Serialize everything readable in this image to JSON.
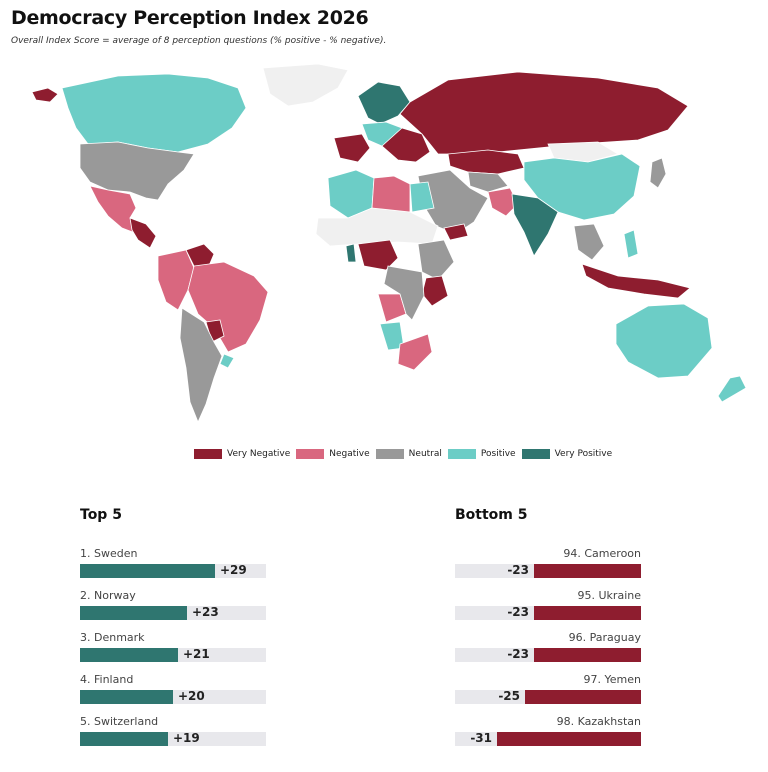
{
  "header": {
    "title": "Democracy Perception Index 2026",
    "subtitle": "Overall Index Score = average of 8 perception questions (% positive - % negative)."
  },
  "colors": {
    "very_negative": "#8e1d2f",
    "negative": "#d9677f",
    "neutral": "#999999",
    "positive": "#6ccdc6",
    "very_positive": "#2f7670",
    "no_data": "#f0f0f0",
    "track": "#e8e8ec"
  },
  "legend": [
    {
      "label": "Very Negative",
      "color": "#8e1d2f"
    },
    {
      "label": "Negative",
      "color": "#d9677f"
    },
    {
      "label": "Neutral",
      "color": "#999999"
    },
    {
      "label": "Positive",
      "color": "#6ccdc6"
    },
    {
      "label": "Very Positive",
      "color": "#2f7670"
    }
  ],
  "top5": {
    "title": "Top 5",
    "items": [
      {
        "label": "1. Sweden",
        "value": 29,
        "display": "+29"
      },
      {
        "label": "2. Norway",
        "value": 23,
        "display": "+23"
      },
      {
        "label": "3. Denmark",
        "value": 21,
        "display": "+21"
      },
      {
        "label": "4. Finland",
        "value": 20,
        "display": "+20"
      },
      {
        "label": "5. Switzerland",
        "value": 19,
        "display": "+19"
      }
    ]
  },
  "bottom5": {
    "title": "Bottom 5",
    "items": [
      {
        "label": "94. Cameroon",
        "value": -23,
        "display": "-23"
      },
      {
        "label": "95. Ukraine",
        "value": -23,
        "display": "-23"
      },
      {
        "label": "96. Paraguay",
        "value": -23,
        "display": "-23"
      },
      {
        "label": "97. Yemen",
        "value": -25,
        "display": "-25"
      },
      {
        "label": "98. Kazakhstan",
        "value": -31,
        "display": "-31"
      }
    ]
  },
  "map_regions": [
    {
      "name": "greenland",
      "category": "no_data"
    },
    {
      "name": "alaska",
      "category": "very_negative"
    },
    {
      "name": "canada",
      "category": "positive"
    },
    {
      "name": "usa",
      "category": "neutral"
    },
    {
      "name": "mexico",
      "category": "negative"
    },
    {
      "name": "central-america",
      "category": "very_negative"
    },
    {
      "name": "venezuela",
      "category": "very_negative"
    },
    {
      "name": "south-america-north",
      "category": "negative"
    },
    {
      "name": "brazil",
      "category": "negative"
    },
    {
      "name": "paraguay",
      "category": "very_negative"
    },
    {
      "name": "argentina",
      "category": "neutral"
    },
    {
      "name": "uruguay",
      "category": "positive"
    },
    {
      "name": "scandinavia",
      "category": "very_positive"
    },
    {
      "name": "western-europe",
      "category": "very_negative"
    },
    {
      "name": "central-europe",
      "category": "positive"
    },
    {
      "name": "eastern-europe",
      "category": "very_negative"
    },
    {
      "name": "russia",
      "category": "very_negative"
    },
    {
      "name": "kazakhstan",
      "category": "very_negative"
    },
    {
      "name": "central-asia",
      "category": "neutral"
    },
    {
      "name": "china",
      "category": "positive"
    },
    {
      "name": "mongolia",
      "category": "no_data"
    },
    {
      "name": "japan",
      "category": "neutral"
    },
    {
      "name": "india",
      "category": "very_positive"
    },
    {
      "name": "pakistan",
      "category": "negative"
    },
    {
      "name": "middle-east",
      "category": "neutral"
    },
    {
      "name": "yemen",
      "category": "very_negative"
    },
    {
      "name": "north-africa-west",
      "category": "positive"
    },
    {
      "name": "libya",
      "category": "negative"
    },
    {
      "name": "egypt",
      "category": "positive"
    },
    {
      "name": "sahel",
      "category": "no_data"
    },
    {
      "name": "nigeria-cameroon",
      "category": "very_negative"
    },
    {
      "name": "ghana",
      "category": "very_positive"
    },
    {
      "name": "east-africa",
      "category": "neutral"
    },
    {
      "name": "tanzania",
      "category": "very_negative"
    },
    {
      "name": "angola",
      "category": "negative"
    },
    {
      "name": "southern-africa",
      "category": "neutral"
    },
    {
      "name": "namibia",
      "category": "positive"
    },
    {
      "name": "south-africa",
      "category": "negative"
    },
    {
      "name": "southeast-asia",
      "category": "neutral"
    },
    {
      "name": "indonesia",
      "category": "very_negative"
    },
    {
      "name": "philippines",
      "category": "positive"
    },
    {
      "name": "australia",
      "category": "positive"
    },
    {
      "name": "new-zealand",
      "category": "positive"
    }
  ]
}
